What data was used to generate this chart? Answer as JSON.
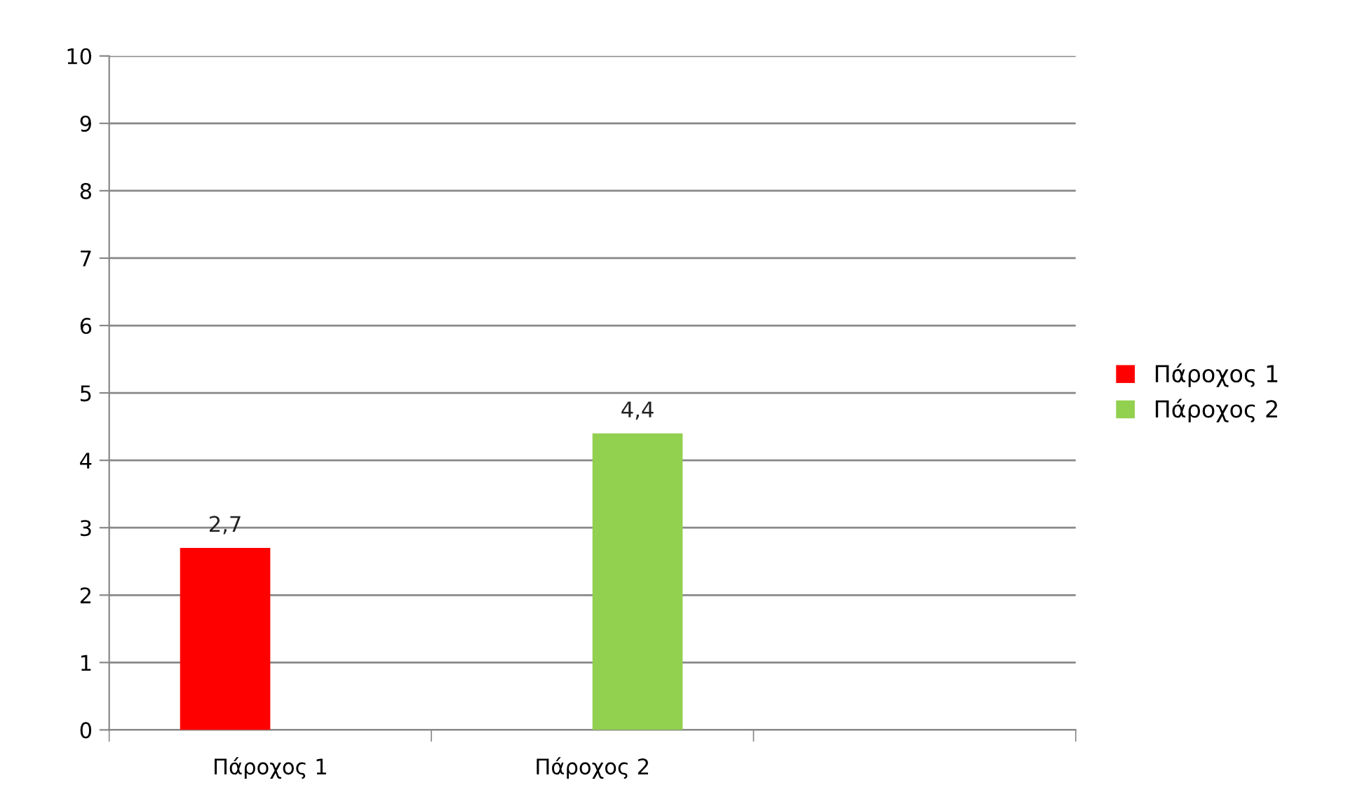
{
  "chart_data": {
    "type": "bar",
    "categories": [
      "Πάροχος 1",
      "Πάροχος 2",
      null
    ],
    "series": [
      {
        "name": "Πάροχος 1",
        "color": "#ff0000",
        "values": [
          2.7,
          null,
          null
        ],
        "value_labels": [
          "2,7",
          null,
          null
        ]
      },
      {
        "name": "Πάροχος 2",
        "color": "#92d050",
        "values": [
          null,
          4.4,
          null
        ],
        "value_labels": [
          null,
          "4,4",
          null
        ]
      }
    ],
    "ylim": [
      0,
      10
    ],
    "yticks": [
      0,
      1,
      2,
      3,
      4,
      5,
      6,
      7,
      8,
      9,
      10
    ],
    "grid": "y",
    "legend": "right"
  }
}
